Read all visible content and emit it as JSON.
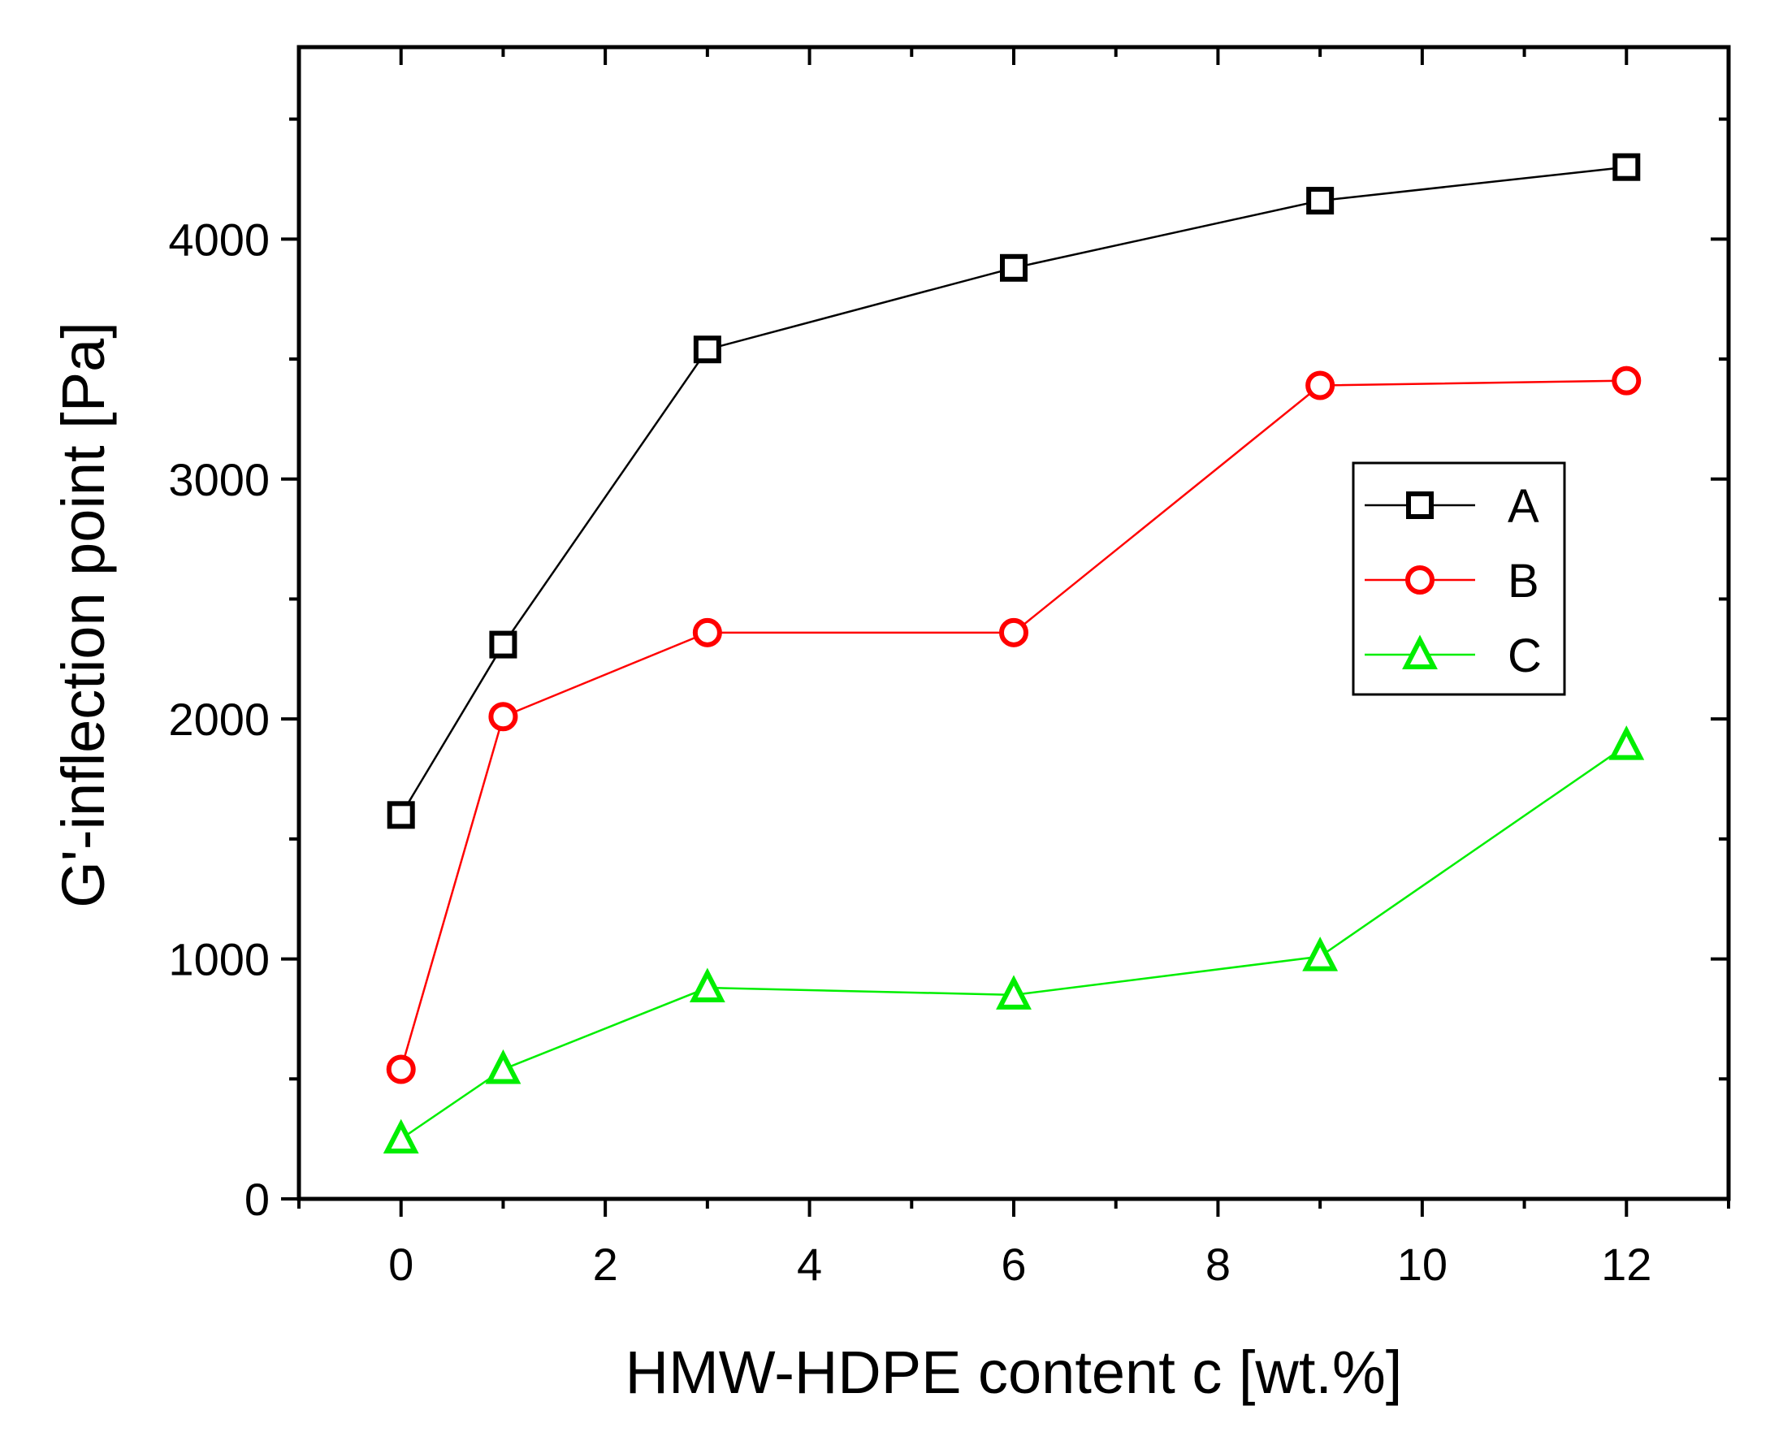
{
  "chart_data": {
    "type": "line",
    "title": "",
    "xlabel": "HMW-HDPE content c [wt.%]",
    "ylabel": "G'-inflection point [Pa]",
    "xlim": [
      -1,
      13
    ],
    "ylim": [
      0,
      4800
    ],
    "x_ticks": [
      0,
      2,
      4,
      6,
      8,
      10,
      12
    ],
    "x_tick_labels": [
      "0",
      "2",
      "4",
      "6",
      "8",
      "10",
      "12"
    ],
    "x_minor_ticks": [
      -1,
      1,
      3,
      5,
      7,
      9,
      11,
      13
    ],
    "y_ticks": [
      0,
      1000,
      2000,
      3000,
      4000
    ],
    "y_tick_labels": [
      "0",
      "1000",
      "2000",
      "3000",
      "4000"
    ],
    "y_minor_ticks": [
      500,
      1500,
      2500,
      3500,
      4500
    ],
    "grid": false,
    "legend_position": "right, upper-middle",
    "x": [
      0,
      1,
      3,
      6,
      9,
      12
    ],
    "series": [
      {
        "name": "A",
        "color": "#000000",
        "marker": "square",
        "values": [
          1600,
          2310,
          3540,
          3880,
          4160,
          4300
        ]
      },
      {
        "name": "B",
        "color": "#ff0000",
        "marker": "circle",
        "values": [
          540,
          2010,
          2360,
          2360,
          3390,
          3410
        ]
      },
      {
        "name": "C",
        "color": "#00ee00",
        "marker": "triangle",
        "values": [
          250,
          540,
          880,
          850,
          1010,
          1890
        ]
      }
    ]
  }
}
